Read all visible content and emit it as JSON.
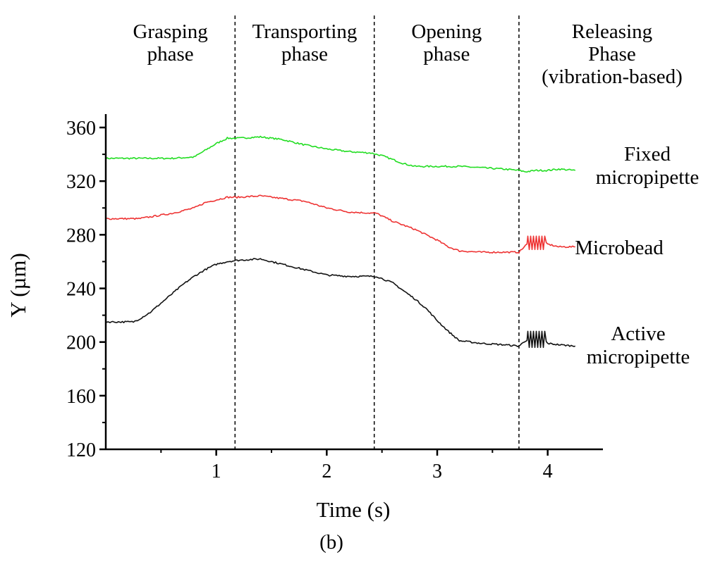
{
  "chart_data": {
    "type": "line",
    "xlabel": "Time (s)",
    "ylabel": "Y (µm)",
    "caption": "(b)",
    "xlim": [
      0,
      4.5
    ],
    "ylim": [
      120,
      370
    ],
    "xticks": [
      1,
      2,
      3,
      4
    ],
    "yticks": [
      120,
      160,
      200,
      240,
      280,
      320,
      360
    ],
    "phases": [
      {
        "label_lines": [
          "Grasping",
          "phase"
        ],
        "end": 1.17
      },
      {
        "label_lines": [
          "Transporting",
          "phase"
        ],
        "end": 2.43
      },
      {
        "label_lines": [
          "Opening",
          "phase"
        ],
        "end": 3.74
      },
      {
        "label_lines": [
          "Releasing",
          "Phase",
          "(vibration-based)"
        ]
      }
    ],
    "series": [
      {
        "label_lines": [
          "Fixed",
          "micropipette"
        ],
        "color": "#22dd22",
        "x": [
          0.0,
          0.3,
          0.6,
          0.8,
          0.9,
          1.0,
          1.1,
          1.2,
          1.4,
          1.6,
          1.8,
          2.0,
          2.2,
          2.4,
          2.5,
          2.6,
          2.7,
          2.8,
          3.0,
          3.2,
          3.4,
          3.6,
          3.74,
          3.8,
          3.9,
          4.0,
          4.1,
          4.25
        ],
        "y": [
          337,
          337,
          337,
          338,
          343,
          348,
          352,
          352,
          353,
          351,
          347,
          344,
          342,
          341,
          339,
          336,
          333,
          331,
          331,
          331,
          330,
          329,
          328,
          327,
          328,
          328,
          329,
          328
        ]
      },
      {
        "label_lines": [
          "Microbead"
        ],
        "color": "#ee3333",
        "x": [
          0.0,
          0.3,
          0.6,
          0.8,
          0.9,
          1.0,
          1.1,
          1.2,
          1.4,
          1.6,
          1.8,
          2.0,
          2.2,
          2.45,
          2.6,
          2.8,
          2.9,
          3.0,
          3.1,
          3.2,
          3.4,
          3.6,
          3.74,
          3.8,
          3.85,
          3.9,
          3.95,
          4.0,
          4.1,
          4.25
        ],
        "y": [
          292,
          292,
          296,
          300,
          304,
          306,
          308,
          308,
          309,
          307,
          305,
          300,
          297,
          296,
          290,
          284,
          280,
          276,
          271,
          268,
          267,
          267,
          267,
          272,
          275,
          276,
          275,
          273,
          271,
          271
        ]
      },
      {
        "label_lines": [
          "Active",
          "micropipette"
        ],
        "color": "#111111",
        "x": [
          0.0,
          0.25,
          0.3,
          0.4,
          0.5,
          0.6,
          0.7,
          0.8,
          0.9,
          1.0,
          1.1,
          1.2,
          1.4,
          1.6,
          1.8,
          2.0,
          2.2,
          2.45,
          2.6,
          2.7,
          2.8,
          2.9,
          3.0,
          3.1,
          3.2,
          3.4,
          3.6,
          3.74,
          3.8,
          3.85,
          3.9,
          3.95,
          4.0,
          4.1,
          4.25
        ],
        "y": [
          215,
          215,
          217,
          222,
          229,
          236,
          243,
          249,
          254,
          258,
          260,
          261,
          262,
          258,
          254,
          250,
          249,
          249,
          244,
          238,
          232,
          225,
          216,
          208,
          201,
          199,
          198,
          197,
          201,
          203,
          204,
          203,
          199,
          198,
          197
        ]
      }
    ],
    "vibration_bursts": [
      {
        "series": 1,
        "x_start": 3.82,
        "x_end": 3.98,
        "y_center": 274,
        "amplitude": 5
      },
      {
        "series": 2,
        "x_start": 3.82,
        "x_end": 3.98,
        "y_center": 202,
        "amplitude": 6
      }
    ]
  }
}
